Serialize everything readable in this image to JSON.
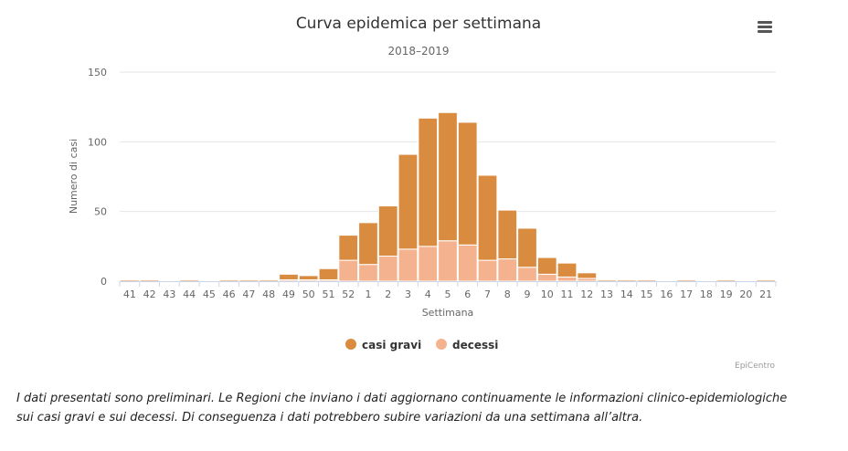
{
  "chart_data": {
    "type": "bar",
    "stacked": true,
    "title": "Curva epidemica per settimana",
    "subtitle": "2018–2019",
    "xlabel": "Settimana",
    "ylabel": "Numero di casi",
    "ylim": [
      0,
      150
    ],
    "yticks": [
      "0",
      "50",
      "100",
      "150"
    ],
    "grid": true,
    "legend_position": "bottom-center",
    "categories": [
      "41",
      "42",
      "43",
      "44",
      "45",
      "46",
      "47",
      "48",
      "49",
      "50",
      "51",
      "52",
      "1",
      "2",
      "3",
      "4",
      "5",
      "6",
      "7",
      "8",
      "9",
      "10",
      "11",
      "12",
      "13",
      "14",
      "15",
      "16",
      "17",
      "18",
      "19",
      "20",
      "21"
    ],
    "series": [
      {
        "name": "casi gravi",
        "color": "#D98B3F",
        "values": [
          1,
          1,
          0,
          1,
          0,
          1,
          1,
          1,
          4,
          3,
          8,
          18,
          30,
          36,
          68,
          92,
          92,
          88,
          61,
          35,
          28,
          12,
          10,
          4,
          1,
          1,
          1,
          0,
          1,
          0,
          1,
          0,
          1
        ]
      },
      {
        "name": "decessi",
        "color": "#F5B28E",
        "values": [
          0,
          0,
          0,
          0,
          0,
          0,
          0,
          0,
          1,
          1,
          1,
          15,
          12,
          18,
          23,
          25,
          29,
          26,
          15,
          16,
          10,
          5,
          3,
          2,
          0,
          0,
          0,
          0,
          0,
          0,
          0,
          0,
          0
        ]
      }
    ],
    "credit": "EpiCentro"
  },
  "note": {
    "line1": "I dati presentati sono preliminari. Le Regioni che inviano i dati aggiornano continuamente le informazioni clinico-epidemiologiche",
    "line2": "sui casi gravi e sui decessi. Di conseguenza i dati potrebbero subire variazioni da una settimana all’altra."
  },
  "menu_icon": "hamburger-menu-icon"
}
